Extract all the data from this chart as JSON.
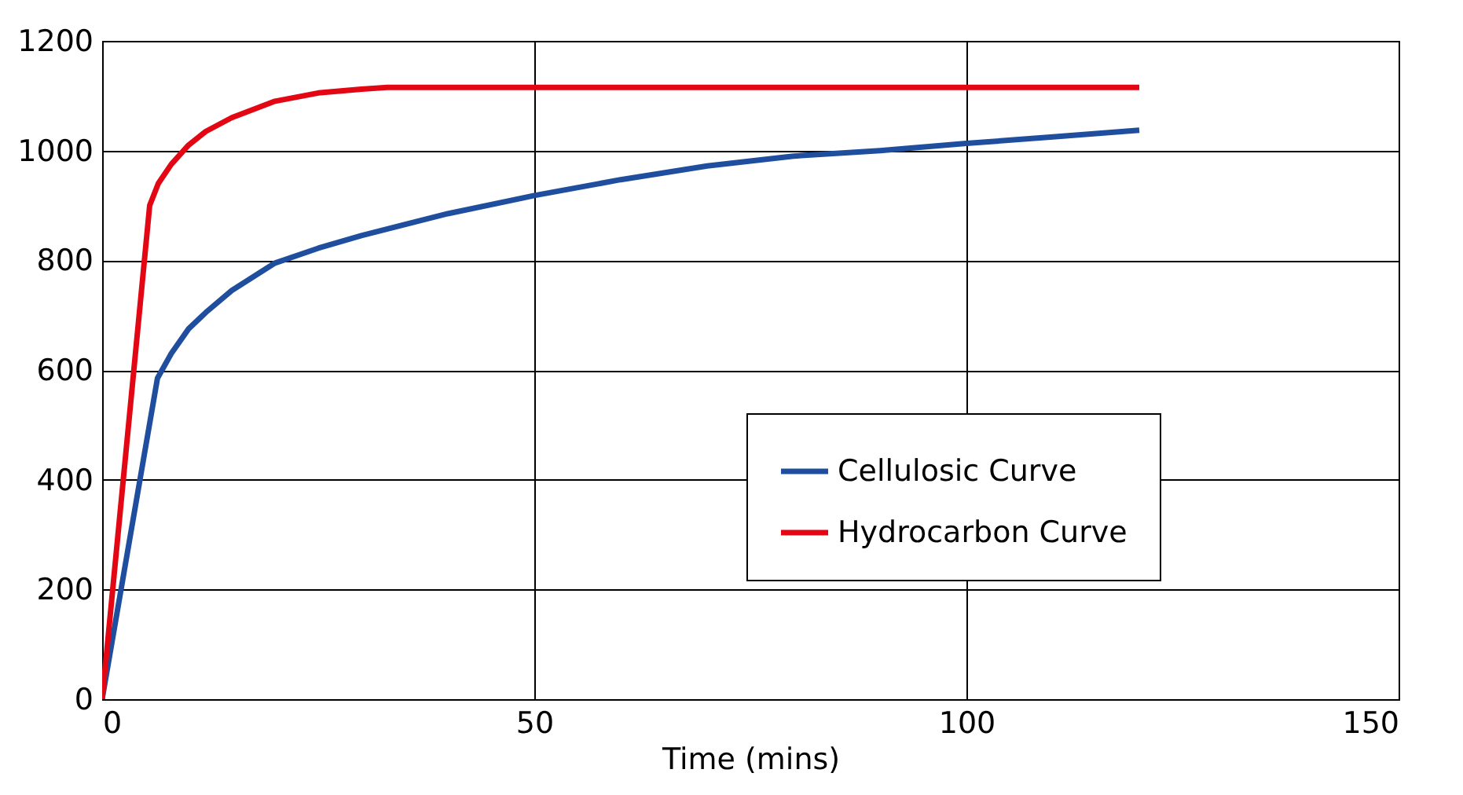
{
  "chart_data": {
    "type": "line",
    "xlabel": "Time (mins)",
    "xlim": [
      0,
      150
    ],
    "xticks": [
      0,
      50,
      100,
      150
    ],
    "ylim": [
      0,
      1200
    ],
    "yticks": [
      0,
      200,
      400,
      600,
      800,
      1000,
      1200
    ],
    "grid": true,
    "legend": "right",
    "line_style": "solid",
    "marker": "none",
    "series": [
      {
        "name": "Cellulosic Curve",
        "color": "#1f4e9e",
        "x": [
          0,
          6.4,
          8,
          10,
          12,
          15,
          20,
          25,
          30,
          40,
          50,
          60,
          70,
          80,
          90,
          100,
          110,
          120
        ],
        "values": [
          0,
          585,
          630,
          675,
          705,
          745,
          795,
          822,
          845,
          885,
          918,
          947,
          972,
          990,
          1000,
          1013,
          1025,
          1037
        ]
      },
      {
        "name": "Hydrocarbon Curve",
        "color": "#e30613",
        "x": [
          0,
          5.5,
          6.5,
          8,
          10,
          12,
          15,
          20,
          25,
          30,
          33,
          120
        ],
        "values": [
          0,
          900,
          940,
          975,
          1010,
          1035,
          1060,
          1090,
          1105,
          1112,
          1115,
          1115
        ]
      }
    ]
  }
}
